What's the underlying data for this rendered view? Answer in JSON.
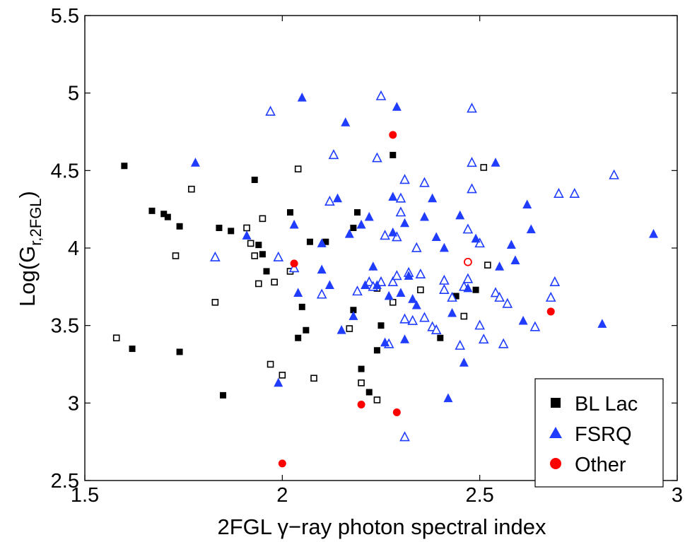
{
  "chart_data": {
    "type": "scatter",
    "title": "",
    "xlabel": "2FGL γ−ray photon spectral index",
    "ylabel_main": "Log(G",
    "ylabel_sub": "r,2FGL",
    "ylabel_close": ")",
    "xlim": [
      1.5,
      3.0
    ],
    "ylim": [
      2.5,
      5.5
    ],
    "xticks": [
      1.5,
      2,
      2.5,
      3
    ],
    "xtick_labels": [
      "1.5",
      "2",
      "2.5",
      "3"
    ],
    "yticks": [
      2.5,
      3,
      3.5,
      4,
      4.5,
      5,
      5.5
    ],
    "ytick_labels": [
      "2.5",
      "3",
      "3.5",
      "4",
      "4.5",
      "5",
      "5.5"
    ],
    "legend_position": "bottom-right",
    "colors": {
      "bllac": "#000000",
      "fsrq": "#1f3cff",
      "other": "#ff0000"
    },
    "series": [
      {
        "name": "BL Lac",
        "marker": "square",
        "filled": [
          [
            1.6,
            4.53
          ],
          [
            1.62,
            3.35
          ],
          [
            1.67,
            4.24
          ],
          [
            1.7,
            4.22
          ],
          [
            1.71,
            4.2
          ],
          [
            1.74,
            4.14
          ],
          [
            1.74,
            3.33
          ],
          [
            1.84,
            4.13
          ],
          [
            1.85,
            3.05
          ],
          [
            1.87,
            4.11
          ],
          [
            1.93,
            4.44
          ],
          [
            1.94,
            4.02
          ],
          [
            1.95,
            3.96
          ],
          [
            1.96,
            3.85
          ],
          [
            2.02,
            4.23
          ],
          [
            2.04,
            3.42
          ],
          [
            2.05,
            3.62
          ],
          [
            2.06,
            3.47
          ],
          [
            2.07,
            4.04
          ],
          [
            2.11,
            4.04
          ],
          [
            2.18,
            3.6
          ],
          [
            2.18,
            4.13
          ],
          [
            2.19,
            4.23
          ],
          [
            2.2,
            3.22
          ],
          [
            2.22,
            3.07
          ],
          [
            2.24,
            3.34
          ],
          [
            2.25,
            3.5
          ],
          [
            2.28,
            4.6
          ],
          [
            2.4,
            3.42
          ],
          [
            2.44,
            3.69
          ],
          [
            2.49,
            3.73
          ]
        ],
        "hollow": [
          [
            1.58,
            3.42
          ],
          [
            1.73,
            3.95
          ],
          [
            1.77,
            4.38
          ],
          [
            1.83,
            3.65
          ],
          [
            1.91,
            4.13
          ],
          [
            1.92,
            4.03
          ],
          [
            1.93,
            3.95
          ],
          [
            1.94,
            3.77
          ],
          [
            1.95,
            4.19
          ],
          [
            1.97,
            3.25
          ],
          [
            1.98,
            3.78
          ],
          [
            2.0,
            3.18
          ],
          [
            2.02,
            3.85
          ],
          [
            2.04,
            4.51
          ],
          [
            2.08,
            3.16
          ],
          [
            2.17,
            3.48
          ],
          [
            2.2,
            3.13
          ],
          [
            2.24,
            3.02
          ],
          [
            2.24,
            3.74
          ],
          [
            2.28,
            3.65
          ],
          [
            2.35,
            3.73
          ],
          [
            2.46,
            3.56
          ],
          [
            2.51,
            4.52
          ],
          [
            2.52,
            3.89
          ]
        ]
      },
      {
        "name": "FSRQ",
        "marker": "triangle",
        "filled": [
          [
            1.78,
            4.55
          ],
          [
            1.91,
            4.08
          ],
          [
            1.99,
            3.13
          ],
          [
            2.03,
            4.15
          ],
          [
            2.04,
            3.71
          ],
          [
            2.05,
            4.97
          ],
          [
            2.1,
            4.03
          ],
          [
            2.1,
            3.86
          ],
          [
            2.12,
            3.76
          ],
          [
            2.14,
            4.32
          ],
          [
            2.15,
            3.47
          ],
          [
            2.16,
            4.81
          ],
          [
            2.17,
            4.09
          ],
          [
            2.18,
            3.56
          ],
          [
            2.2,
            4.15
          ],
          [
            2.21,
            3.76
          ],
          [
            2.22,
            4.2
          ],
          [
            2.23,
            3.88
          ],
          [
            2.24,
            3.76
          ],
          [
            2.26,
            3.39
          ],
          [
            2.27,
            3.69
          ],
          [
            2.28,
            4.33
          ],
          [
            2.28,
            4.1
          ],
          [
            2.29,
            4.91
          ],
          [
            2.3,
            3.71
          ],
          [
            2.31,
            3.41
          ],
          [
            2.31,
            4.16
          ],
          [
            2.32,
            3.82
          ],
          [
            2.33,
            3.67
          ],
          [
            2.34,
            3.63
          ],
          [
            2.36,
            4.2
          ],
          [
            2.38,
            4.32
          ],
          [
            2.39,
            4.07
          ],
          [
            2.41,
            4.0
          ],
          [
            2.42,
            3.03
          ],
          [
            2.43,
            3.58
          ],
          [
            2.45,
            4.21
          ],
          [
            2.46,
            3.26
          ],
          [
            2.47,
            3.74
          ],
          [
            2.49,
            4.06
          ],
          [
            2.54,
            4.55
          ],
          [
            2.55,
            3.88
          ],
          [
            2.58,
            4.02
          ],
          [
            2.59,
            3.92
          ],
          [
            2.61,
            3.53
          ],
          [
            2.62,
            4.28
          ],
          [
            2.63,
            4.12
          ],
          [
            2.81,
            3.51
          ],
          [
            2.94,
            4.09
          ]
        ],
        "hollow": [
          [
            1.83,
            3.94
          ],
          [
            1.97,
            4.88
          ],
          [
            1.99,
            3.94
          ],
          [
            2.03,
            3.87
          ],
          [
            2.1,
            3.7
          ],
          [
            2.12,
            4.3
          ],
          [
            2.13,
            4.6
          ],
          [
            2.19,
            3.72
          ],
          [
            2.22,
            3.78
          ],
          [
            2.23,
            3.75
          ],
          [
            2.24,
            4.58
          ],
          [
            2.25,
            3.78
          ],
          [
            2.25,
            4.98
          ],
          [
            2.26,
            4.08
          ],
          [
            2.27,
            3.38
          ],
          [
            2.28,
            3.78
          ],
          [
            2.29,
            4.07
          ],
          [
            2.29,
            3.82
          ],
          [
            2.3,
            4.32
          ],
          [
            2.3,
            4.23
          ],
          [
            2.31,
            2.78
          ],
          [
            2.31,
            4.44
          ],
          [
            2.31,
            3.54
          ],
          [
            2.32,
            3.84
          ],
          [
            2.33,
            3.53
          ],
          [
            2.34,
            4.0
          ],
          [
            2.35,
            3.83
          ],
          [
            2.36,
            4.42
          ],
          [
            2.36,
            3.55
          ],
          [
            2.38,
            3.49
          ],
          [
            2.39,
            3.47
          ],
          [
            2.41,
            3.79
          ],
          [
            2.41,
            3.73
          ],
          [
            2.43,
            3.68
          ],
          [
            2.45,
            3.37
          ],
          [
            2.46,
            3.75
          ],
          [
            2.47,
            4.12
          ],
          [
            2.47,
            3.8
          ],
          [
            2.48,
            4.55
          ],
          [
            2.48,
            4.38
          ],
          [
            2.48,
            4.9
          ],
          [
            2.5,
            4.03
          ],
          [
            2.5,
            3.5
          ],
          [
            2.51,
            3.41
          ],
          [
            2.54,
            3.71
          ],
          [
            2.55,
            3.68
          ],
          [
            2.56,
            3.38
          ],
          [
            2.57,
            3.64
          ],
          [
            2.64,
            3.49
          ],
          [
            2.68,
            3.68
          ],
          [
            2.69,
            3.78
          ],
          [
            2.7,
            4.35
          ],
          [
            2.74,
            4.35
          ],
          [
            2.84,
            4.47
          ]
        ]
      },
      {
        "name": "Other",
        "marker": "circle",
        "filled": [
          [
            2.0,
            2.61
          ],
          [
            2.03,
            3.9
          ],
          [
            2.2,
            2.99
          ],
          [
            2.28,
            4.73
          ],
          [
            2.29,
            2.94
          ],
          [
            2.68,
            3.59
          ]
        ],
        "hollow": [
          [
            2.47,
            3.91
          ]
        ]
      }
    ]
  }
}
